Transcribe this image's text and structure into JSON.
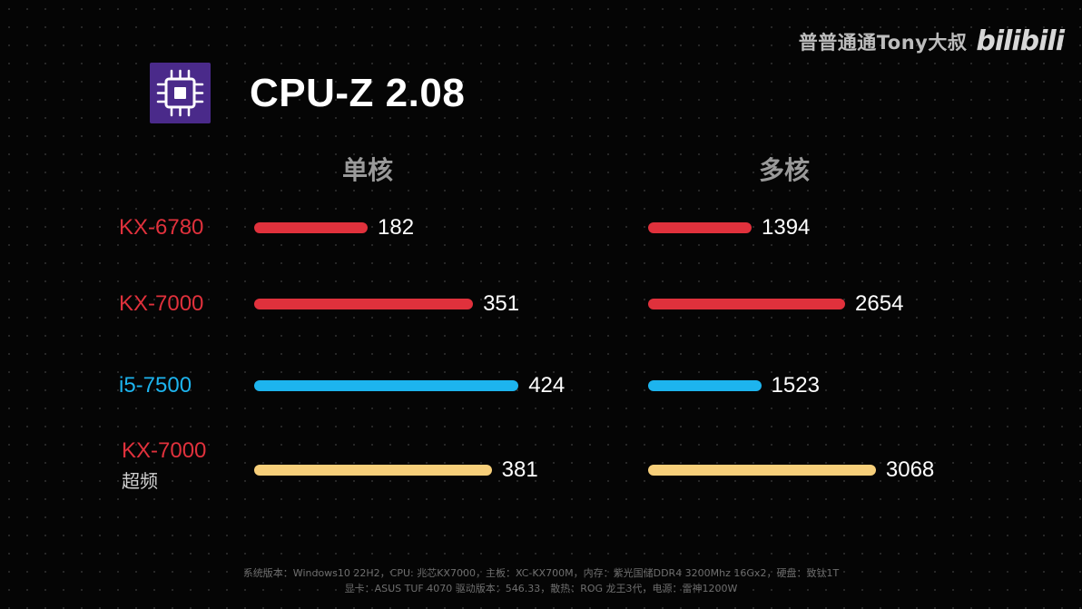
{
  "watermark": {
    "author": "普普通通Tony大叔",
    "logo": "bilibili"
  },
  "app_icon": "cpu-chip-icon",
  "title": "CPU-Z 2.08",
  "footer": {
    "line1": "系统版本：Windows10 22H2，CPU: 兆芯KX7000，主板：XC-KX700M，内存：紫光国储DDR4 3200Mhz 16Gx2，硬盘：致钛1T",
    "line2": "显卡：ASUS TUF 4070 驱动版本：546.33，散热：ROG 龙王3代，电源：雷神1200W"
  },
  "chart_data": {
    "type": "bar",
    "orientation": "horizontal",
    "title": "CPU-Z 2.08",
    "panels": [
      "单核",
      "多核"
    ],
    "categories": [
      {
        "label": "KX-6780",
        "sublabel": "",
        "color": "#e0313c"
      },
      {
        "label": "KX-7000",
        "sublabel": "",
        "color": "#e0313c"
      },
      {
        "label": "i5-7500",
        "sublabel": "",
        "color": "#1db4ee"
      },
      {
        "label": "KX-7000",
        "sublabel": "超频",
        "color": "#f7cf7a"
      }
    ],
    "series": [
      {
        "name": "单核",
        "values": [
          182,
          351,
          424,
          381
        ]
      },
      {
        "name": "多核",
        "values": [
          1394,
          2654,
          1523,
          3068
        ]
      }
    ],
    "grid": false,
    "legend": "none"
  }
}
